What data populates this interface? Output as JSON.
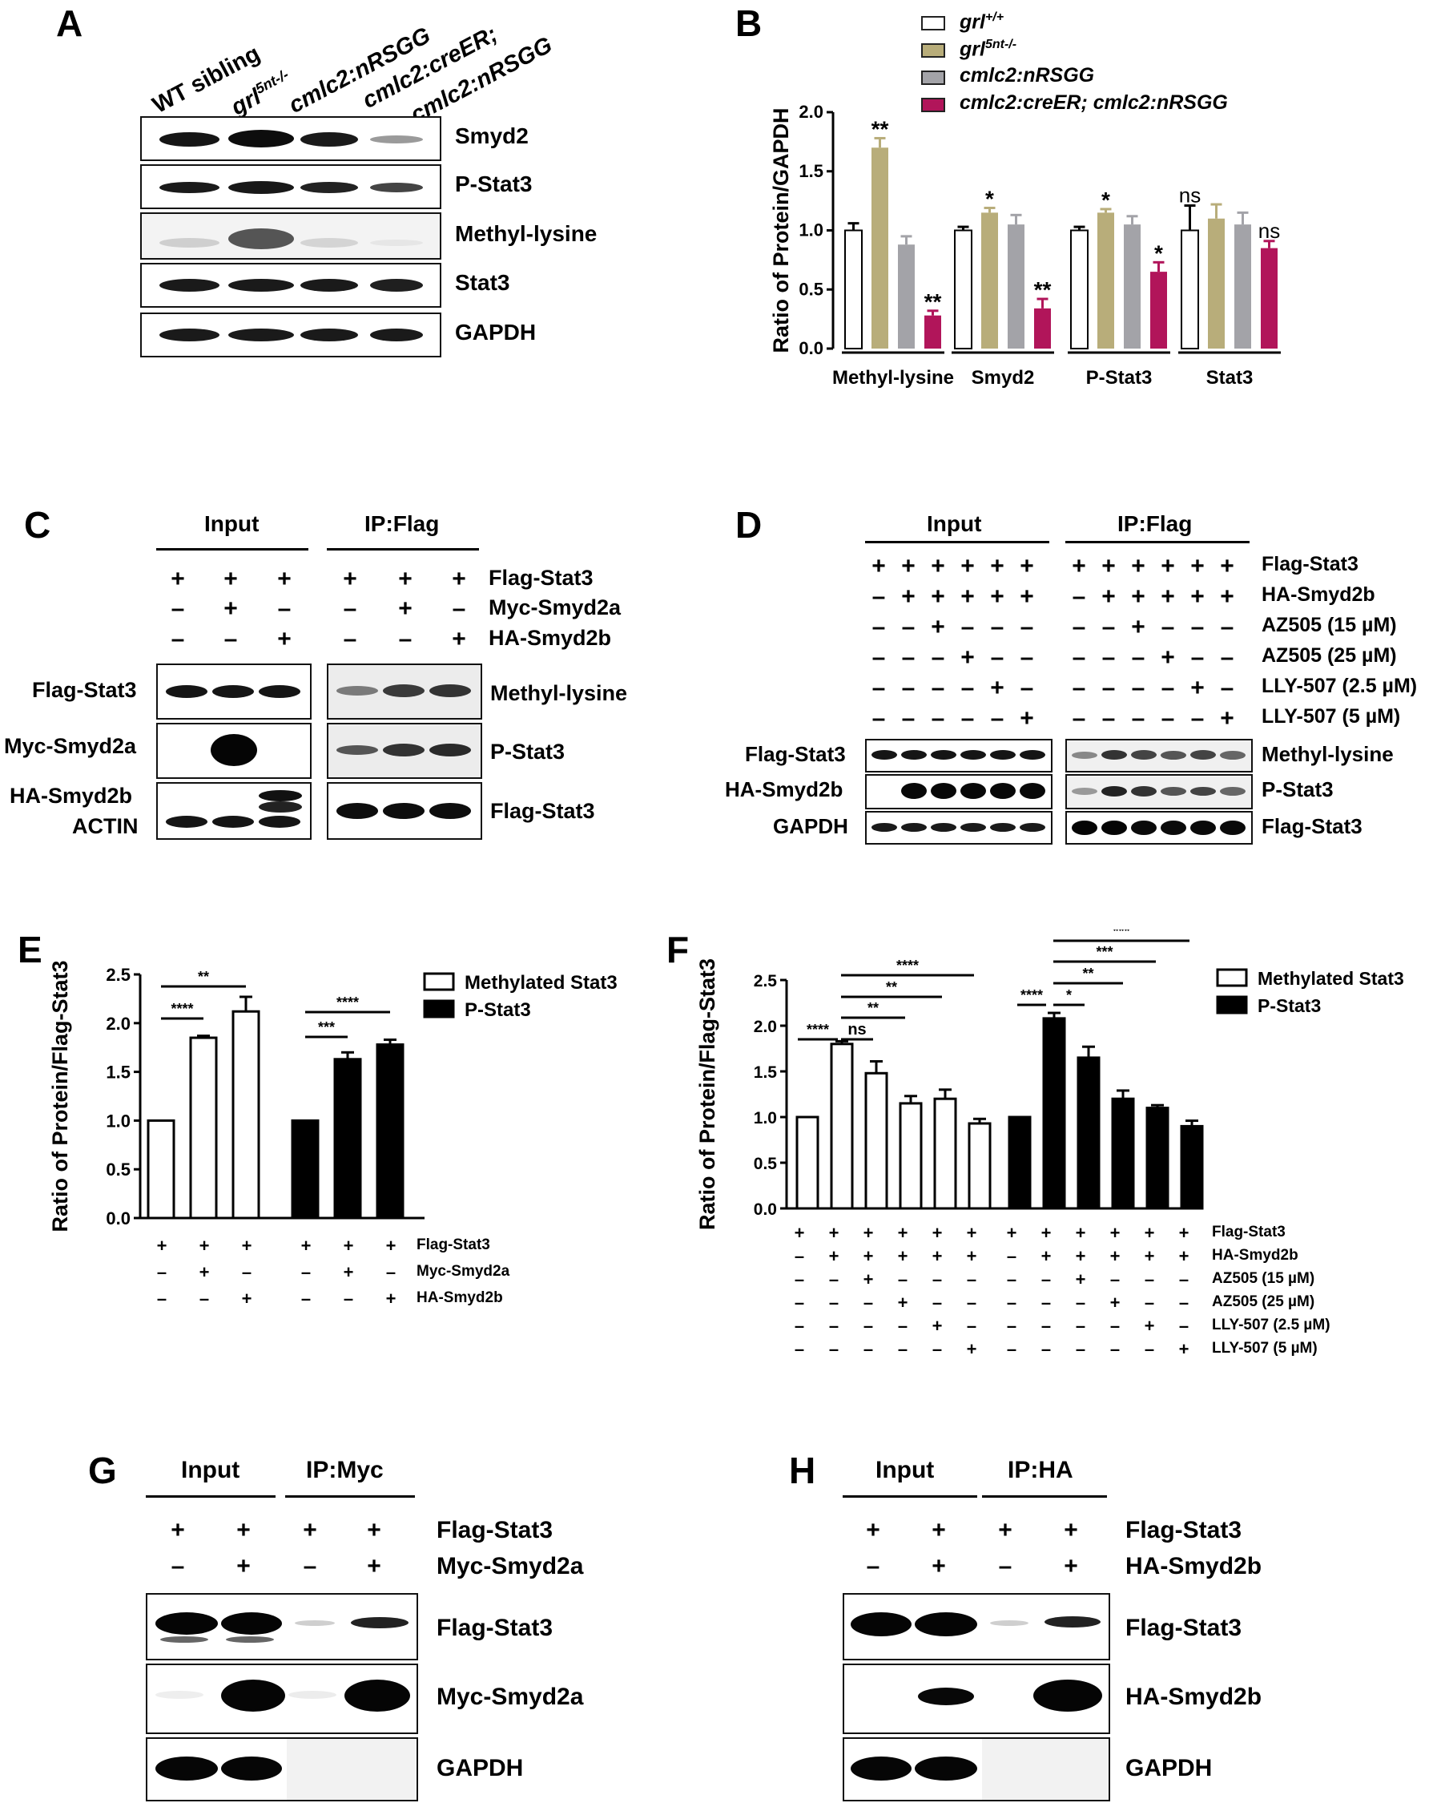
{
  "panels": {
    "A": {
      "label": "A",
      "lanes": [
        "WT sibling",
        "grl",
        "5nt-/-",
        "cmlc2:nRSGG",
        "cmlc2:creER;",
        "cmlc2:nRSGG"
      ],
      "blots": [
        "Smyd2",
        "P-Stat3",
        "Methyl-lysine",
        "Stat3",
        "GAPDH"
      ]
    },
    "B": {
      "label": "B",
      "legend": [
        {
          "base": "grl",
          "sup": "+/+",
          "color": "#ffffff"
        },
        {
          "base": "grl",
          "sup": "5nt-/-",
          "color": "#b8ad7a"
        },
        {
          "base": "cmlc2:nRSGG",
          "sup": "",
          "color": "#a3a3a8"
        },
        {
          "base": "cmlc2:creER; cmlc2:nRSGG",
          "sup": "",
          "color": "#b1155a"
        }
      ]
    },
    "C": {
      "label": "C",
      "headers": [
        "Input",
        "IP:Flag"
      ],
      "rows": [
        "Flag-Stat3",
        "Myc-Smyd2a",
        "HA-Smyd2b"
      ],
      "left_blots": [
        "Flag-Stat3",
        "Myc-Smyd2a",
        "HA-Smyd2b",
        "ACTIN"
      ],
      "right_blots": [
        "Methyl-lysine",
        "P-Stat3",
        "Flag-Stat3"
      ]
    },
    "D": {
      "label": "D",
      "headers": [
        "Input",
        "IP:Flag"
      ],
      "rows": [
        "Flag-Stat3",
        "HA-Smyd2b",
        "AZ505 (15 µM)",
        "AZ505 (25 µM)",
        "LLY-507 (2.5 µM)",
        "LLY-507 (5 µM)"
      ],
      "left_blots": [
        "Flag-Stat3",
        "HA-Smyd2b",
        "GAPDH"
      ],
      "right_blots": [
        "Methyl-lysine",
        "P-Stat3",
        "Flag-Stat3"
      ]
    },
    "E": {
      "label": "E",
      "rows": [
        "Flag-Stat3",
        "Myc-Smyd2a",
        "HA-Smyd2b"
      ]
    },
    "F": {
      "label": "F",
      "rows": [
        "Flag-Stat3",
        "HA-Smyd2b",
        "AZ505 (15 µM)",
        "AZ505 (25 µM)",
        "LLY-507 (2.5 µM)",
        "LLY-507 (5 µM)"
      ]
    },
    "G": {
      "label": "G",
      "headers": [
        "Input",
        "IP:Myc"
      ],
      "rows": [
        "Flag-Stat3",
        "Myc-Smyd2a"
      ],
      "blots": [
        "Flag-Stat3",
        "Myc-Smyd2a",
        "GAPDH"
      ]
    },
    "H": {
      "label": "H",
      "headers": [
        "Input",
        "IP:HA"
      ],
      "rows": [
        "Flag-Stat3",
        "HA-Smyd2b"
      ],
      "blots": [
        "Flag-Stat3",
        "HA-Smyd2b",
        "GAPDH"
      ]
    }
  },
  "chart_data": [
    {
      "id": "B",
      "type": "bar",
      "ylabel": "Ratio of Protein/GAPDH",
      "ylim": [
        0,
        2.0
      ],
      "yticks": [
        "0.0",
        "0.5",
        "1.0",
        "1.5",
        "2.0"
      ],
      "categories": [
        "Methyl-lysine",
        "Smyd2",
        "P-Stat3",
        "Stat3"
      ],
      "series": [
        {
          "name": "grl+/+",
          "values": [
            1.0,
            1.0,
            1.0,
            1.0
          ],
          "errors": [
            0.06,
            0.03,
            0.03,
            0.21
          ],
          "color": "#ffffff"
        },
        {
          "name": "grl5nt-/-",
          "values": [
            1.7,
            1.15,
            1.15,
            1.1
          ],
          "errors": [
            0.08,
            0.04,
            0.03,
            0.12
          ],
          "color": "#b8ad7a"
        },
        {
          "name": "cmlc2:nRSGG",
          "values": [
            0.88,
            1.05,
            1.05,
            1.05
          ],
          "errors": [
            0.07,
            0.08,
            0.07,
            0.1
          ],
          "color": "#a3a3a8"
        },
        {
          "name": "cmlc2:creER; cmlc2:nRSGG",
          "values": [
            0.28,
            0.34,
            0.65,
            0.85
          ],
          "errors": [
            0.04,
            0.08,
            0.08,
            0.06
          ],
          "color": "#b1155a"
        }
      ],
      "annotations": [
        [
          "",
          "**",
          "",
          "**"
        ],
        [
          "",
          "*",
          "",
          "**"
        ],
        [
          "",
          "*",
          "",
          "*"
        ],
        [
          "ns",
          "",
          "",
          "ns"
        ]
      ],
      "grid": false
    },
    {
      "id": "E",
      "type": "bar",
      "ylabel": "Ratio of Protein/Flag-Stat3",
      "ylim": [
        0,
        2.5
      ],
      "yticks": [
        "0.0",
        "0.5",
        "1.0",
        "1.5",
        "2.0",
        "2.5"
      ],
      "legend": [
        "Methylated Stat3",
        "P-Stat3"
      ],
      "series": [
        {
          "name": "Methylated Stat3",
          "values": [
            1.0,
            1.85,
            2.12
          ],
          "errors": [
            0,
            0.02,
            0.15
          ],
          "fill": "#ffffff"
        },
        {
          "name": "P-Stat3",
          "values": [
            1.0,
            1.63,
            1.78
          ],
          "errors": [
            0,
            0.07,
            0.05
          ],
          "fill": "#000000"
        }
      ],
      "signs": [
        [
          "+",
          "+",
          "+",
          "+",
          "+",
          "+"
        ],
        [
          "–",
          "+",
          "–",
          "–",
          "+",
          "–"
        ],
        [
          "–",
          "–",
          "+",
          "–",
          "–",
          "+"
        ]
      ],
      "significance": [
        {
          "from": 0,
          "to": 1,
          "label": "****"
        },
        {
          "from": 0,
          "to": 2,
          "label": "**"
        },
        {
          "from": 3,
          "to": 4,
          "label": "***"
        },
        {
          "from": 3,
          "to": 5,
          "label": "****"
        }
      ]
    },
    {
      "id": "F",
      "type": "bar",
      "ylabel": "Ratio of Protein/Flag-Stat3",
      "ylim": [
        0,
        2.5
      ],
      "yticks": [
        "0.0",
        "0.5",
        "1.0",
        "1.5",
        "2.0",
        "2.5"
      ],
      "legend": [
        "Methylated Stat3",
        "P-Stat3"
      ],
      "series": [
        {
          "name": "Methylated Stat3",
          "values": [
            1.0,
            1.8,
            1.48,
            1.15,
            1.2,
            0.93
          ],
          "errors": [
            0,
            0.03,
            0.13,
            0.08,
            0.1,
            0.05
          ],
          "fill": "#ffffff"
        },
        {
          "name": "P-Stat3",
          "values": [
            1.0,
            2.08,
            1.65,
            1.2,
            1.1,
            0.9
          ],
          "errors": [
            0,
            0.06,
            0.12,
            0.09,
            0.03,
            0.06
          ],
          "fill": "#000000"
        }
      ],
      "signs": [
        [
          "+",
          "+",
          "+",
          "+",
          "+",
          "+",
          "+",
          "+",
          "+",
          "+",
          "+",
          "+"
        ],
        [
          "–",
          "+",
          "+",
          "+",
          "+",
          "+",
          "–",
          "+",
          "+",
          "+",
          "+",
          "+"
        ],
        [
          "–",
          "–",
          "+",
          "–",
          "–",
          "–",
          "–",
          "–",
          "+",
          "–",
          "–",
          "–"
        ],
        [
          "–",
          "–",
          "–",
          "+",
          "–",
          "–",
          "–",
          "–",
          "–",
          "+",
          "–",
          "–"
        ],
        [
          "–",
          "–",
          "–",
          "–",
          "+",
          "–",
          "–",
          "–",
          "–",
          "–",
          "+",
          "–"
        ],
        [
          "–",
          "–",
          "–",
          "–",
          "–",
          "+",
          "–",
          "–",
          "–",
          "–",
          "–",
          "+"
        ]
      ],
      "significance": [
        {
          "from": 0,
          "to": 1,
          "label": "****"
        },
        {
          "from": 1,
          "to": 2,
          "label": "ns"
        },
        {
          "from": 1,
          "to": 3,
          "label": "**"
        },
        {
          "from": 1,
          "to": 4,
          "label": "**"
        },
        {
          "from": 1,
          "to": 5,
          "label": "****"
        },
        {
          "from": 6,
          "to": 7,
          "label": "****"
        },
        {
          "from": 7,
          "to": 8,
          "label": "*"
        },
        {
          "from": 7,
          "to": 9,
          "label": "**"
        },
        {
          "from": 7,
          "to": 10,
          "label": "***"
        },
        {
          "from": 7,
          "to": 11,
          "label": "***"
        }
      ]
    }
  ]
}
